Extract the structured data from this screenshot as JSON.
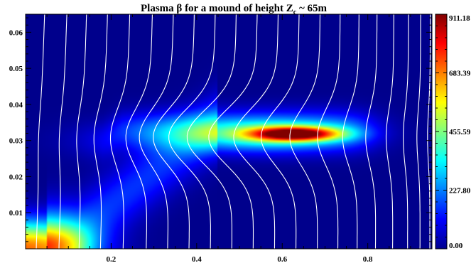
{
  "chart_data": {
    "type": "heatmap",
    "title": "Plasma β for a mound of height Z",
    "title_subscript": "c",
    "title_suffix": " ~ 65m",
    "xlabel": "",
    "ylabel": "",
    "xlim": [
      0.0,
      0.95
    ],
    "ylim": [
      0.0,
      0.065
    ],
    "x_ticks": [
      {
        "value": 0.2,
        "label": "0.2"
      },
      {
        "value": 0.4,
        "label": "0.4"
      },
      {
        "value": 0.6,
        "label": "0.6"
      },
      {
        "value": 0.8,
        "label": "0.8"
      }
    ],
    "y_ticks": [
      {
        "value": 0.01,
        "label": "0.01"
      },
      {
        "value": 0.02,
        "label": "0.02"
      },
      {
        "value": 0.03,
        "label": "0.03"
      },
      {
        "value": 0.04,
        "label": "0.04"
      },
      {
        "value": 0.05,
        "label": "0.05"
      },
      {
        "value": 0.06,
        "label": "0.06"
      }
    ],
    "colorbar": {
      "min": 0.0,
      "max": 911.18,
      "ticks": [
        {
          "value": 911.18,
          "label": "911.18"
        },
        {
          "value": 683.39,
          "label": "683.39"
        },
        {
          "value": 455.59,
          "label": "455.59"
        },
        {
          "value": 227.8,
          "label": "227.80"
        },
        {
          "value": 0.0,
          "label": "0.00"
        }
      ],
      "colormap": "jet"
    },
    "field_features": [
      {
        "name": "plasma-beta-peak",
        "x": 0.63,
        "y": 0.0318,
        "value": 911.18
      },
      {
        "name": "plasma-beta-base",
        "x": 0.08,
        "y": 0.003,
        "value": 710.0
      }
    ],
    "field_lines": {
      "color": "#ffffff",
      "x_positions": [
        0.025,
        0.078,
        0.125,
        0.175,
        0.228,
        0.282,
        0.332,
        0.382,
        0.432,
        0.482,
        0.532,
        0.582,
        0.632,
        0.682,
        0.73,
        0.775,
        0.818,
        0.858,
        0.893,
        0.922,
        0.945
      ]
    },
    "grid": false,
    "legend": "none"
  }
}
